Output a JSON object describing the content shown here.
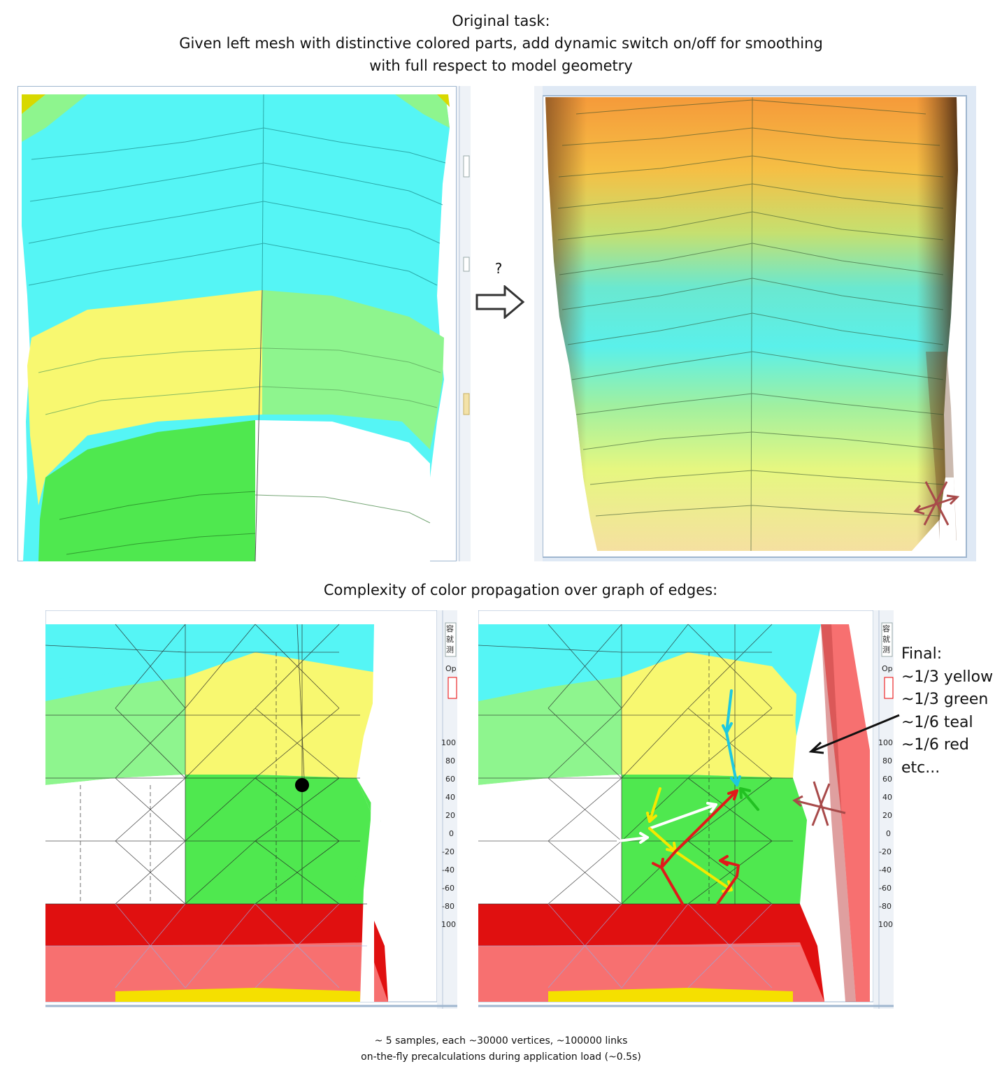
{
  "header": {
    "line1": "Original task:",
    "line2": "Given left mesh with distinctive colored parts, add dynamic switch on/off for smoothing",
    "line3": "with full respect to model geometry"
  },
  "arrow": {
    "question_mark": "?"
  },
  "section2": {
    "title": "Complexity of color propagation over graph of edges:"
  },
  "axis": {
    "ticks": [
      "100",
      "80",
      "60",
      "40",
      "20",
      "0",
      "-20",
      "-40",
      "-60",
      "-80",
      "100"
    ]
  },
  "side_labels": {
    "a": "容",
    "b": "就",
    "c": "测",
    "opt": "Op"
  },
  "final": {
    "lines": [
      "Final:",
      "~1/3 yellow",
      "~1/3 green",
      "~1/6 teal",
      "~1/6 red",
      "etc..."
    ]
  },
  "footer": {
    "line1": "~ 5 samples, each ~30000 vertices, ~100000 links",
    "line2": "on-the-fly precalculations during application load (~0.5s)"
  },
  "colors": {
    "cyan": "#55f5f5",
    "light_green": "#8ef58e",
    "yellow": "#f8f870",
    "green": "#4fe84f",
    "white": "#ffffff",
    "red": "#e01010",
    "salmon": "#f77070",
    "arrow_yellow": "#f5e800",
    "arrow_red": "#e01a1a",
    "arrow_cyan": "#1ec8e0",
    "arrow_green": "#22c022",
    "cross_brown": "#a84a4a"
  }
}
